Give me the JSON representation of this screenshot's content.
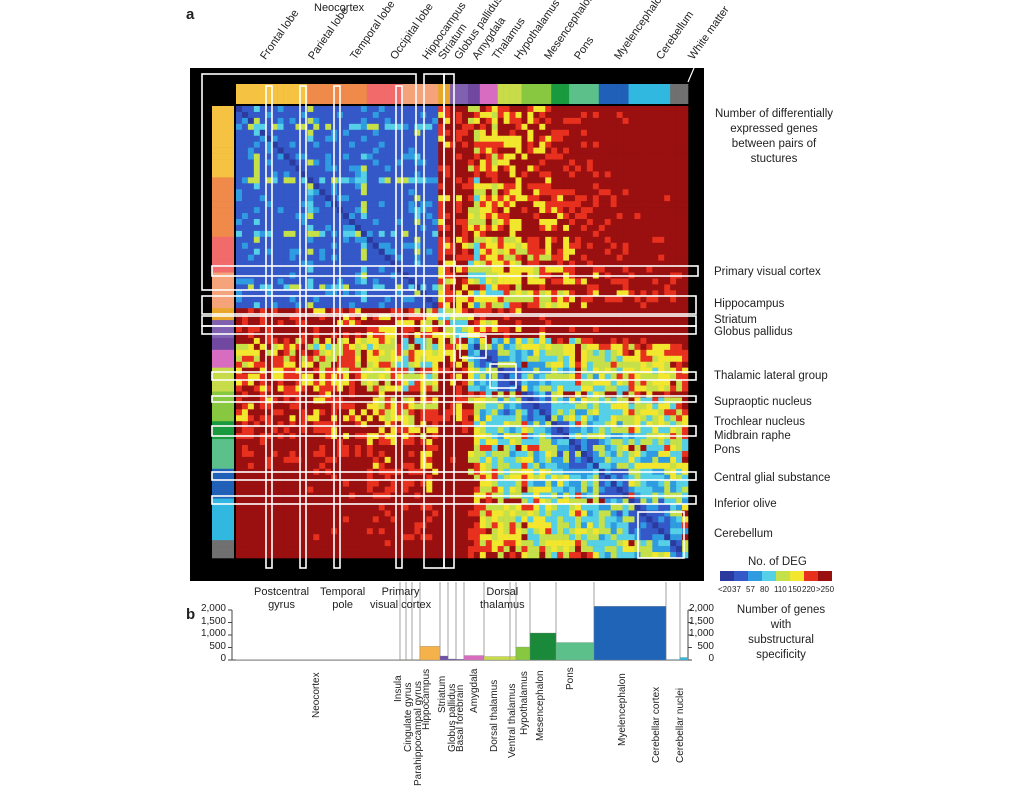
{
  "panel_a": {
    "letter": "a",
    "top_group_label": "Neocortex",
    "top_labels": [
      "Frontal lobe",
      "Parietal lobe",
      "Temporal lobe",
      "Occipital lobe",
      "Hippocampus",
      "Striatum",
      "Globus pallidus",
      "Amygdala",
      "Thalamus",
      "Hypothalamus",
      "Mesencephalon",
      "Pons",
      "Myelencephalon",
      "Cerebellum",
      "White matter"
    ],
    "right_title": [
      "Number of differentially",
      "expressed genes",
      "between pairs of",
      "stuctures"
    ],
    "right_labels": [
      "Primary visual cortex",
      "Hippocampus",
      "Striatum",
      "Globus pallidus",
      "Thalamic lateral group",
      "Supraoptic nucleus",
      "Trochlear nucleus",
      "Midbrain raphe",
      "Pons",
      "Central glial substance",
      "Inferior olive",
      "Cerebellum"
    ],
    "bottom_labels": [
      [
        "Postcentral",
        "gyrus"
      ],
      [
        "Temporal",
        "pole"
      ],
      [
        "Primary",
        "visual cortex"
      ],
      [
        "Dorsal",
        "thalamus"
      ]
    ],
    "legend": {
      "title": "No. of DEG",
      "ticks": [
        "<20",
        "37",
        "57",
        "80",
        "110",
        "150",
        "220",
        ">250"
      ],
      "colors": [
        "#2b3a9e",
        "#3558c8",
        "#2f9be0",
        "#55d0e6",
        "#c6e04a",
        "#f2e62e",
        "#e8301f",
        "#9a1010"
      ]
    },
    "group_colors": [
      "#f5c242",
      "#f08a4b",
      "#f26b6b",
      "#f5a37a",
      "#e8a72a",
      "#8060b0",
      "#7048a0",
      "#d86cc0",
      "#c8dc4a",
      "#88c840",
      "#1a9a3e",
      "#5cc08a",
      "#2060b8",
      "#30b8e0",
      "#707070"
    ]
  },
  "panel_b": {
    "letter": "b",
    "right_title": [
      "Number of genes",
      "with",
      "substructural",
      "specificity"
    ],
    "chart_data": {
      "type": "bar",
      "categories": [
        "Neocortex",
        "Insula",
        "Cingulate gyrus",
        "Parahippocampal gyrus",
        "Hippocampus",
        "Striatum",
        "Globus pallidus",
        "Basal forebrain",
        "Amygdala",
        "Dorsal thalamus",
        "Ventral thalamus",
        "Hypothalamus",
        "Mesencephalon",
        "Pons",
        "Myelencephalon",
        "Cerebellar cortex",
        "Cerebellar nuclei"
      ],
      "values": [
        10,
        5,
        5,
        5,
        550,
        160,
        40,
        30,
        180,
        140,
        140,
        520,
        1080,
        700,
        2150,
        20,
        100
      ],
      "colors": [
        "#f5c242",
        "#f5c242",
        "#f5c242",
        "#f5c242",
        "#f5b14a",
        "#7050a8",
        "#7050a8",
        "#7050a8",
        "#d86cc0",
        "#c8dc4a",
        "#c8dc4a",
        "#88c840",
        "#1a8a3a",
        "#5cc08a",
        "#2064b8",
        "#30b8e0",
        "#30b8e0"
      ],
      "yticks": [
        "0",
        "500",
        "1,000",
        "1,500",
        "2,000"
      ],
      "ylim": [
        0,
        2000
      ]
    }
  }
}
